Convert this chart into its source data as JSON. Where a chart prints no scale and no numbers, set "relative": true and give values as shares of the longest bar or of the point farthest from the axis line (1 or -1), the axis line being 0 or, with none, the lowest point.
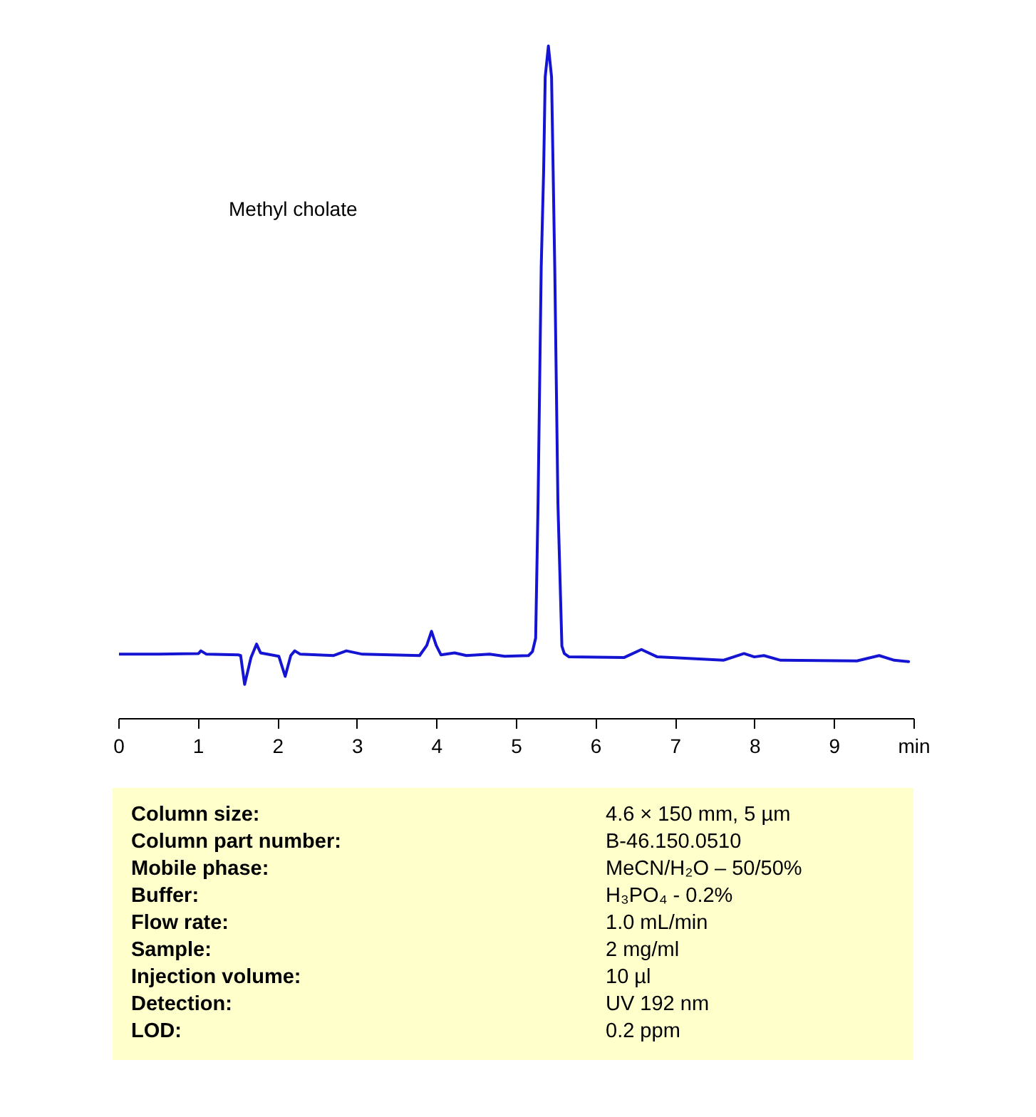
{
  "chart_data": {
    "type": "line",
    "title": "Methyl cholate",
    "relative": true,
    "x": [
      0.0,
      0.5,
      1.0,
      1.03,
      1.1,
      1.5,
      1.53,
      1.58,
      1.66,
      1.73,
      1.78,
      2.01,
      2.09,
      2.16,
      2.21,
      2.28,
      2.7,
      2.86,
      3.06,
      3.78,
      3.87,
      3.93,
      3.99,
      4.05,
      4.22,
      4.37,
      4.66,
      4.85,
      5.15,
      5.2,
      5.24,
      5.27,
      5.29,
      5.31,
      5.34,
      5.36,
      5.4,
      5.44,
      5.46,
      5.48,
      5.5,
      5.52,
      5.57,
      5.6,
      5.66,
      6.35,
      6.57,
      6.77,
      7.6,
      7.86,
      7.99,
      8.11,
      8.32,
      9.28,
      9.56,
      9.75,
      9.93
    ],
    "series": [
      {
        "color": "#1414d2",
        "values": [
          0.096,
          0.096,
          0.097,
          0.101,
          0.096,
          0.095,
          0.094,
          0.051,
          0.091,
          0.111,
          0.098,
          0.093,
          0.063,
          0.094,
          0.101,
          0.096,
          0.094,
          0.101,
          0.096,
          0.094,
          0.109,
          0.13,
          0.109,
          0.095,
          0.098,
          0.094,
          0.096,
          0.093,
          0.094,
          0.1,
          0.12,
          0.32,
          0.496,
          0.672,
          0.813,
          0.954,
          1.0,
          0.954,
          0.813,
          0.672,
          0.496,
          0.32,
          0.108,
          0.097,
          0.092,
          0.091,
          0.103,
          0.092,
          0.087,
          0.097,
          0.092,
          0.094,
          0.087,
          0.086,
          0.094,
          0.087,
          0.085
        ]
      }
    ],
    "xlim": [
      0,
      10
    ],
    "xticks": [
      0,
      1,
      2,
      3,
      4,
      5,
      6,
      7,
      8,
      9,
      {
        "value": 10,
        "label": "min"
      }
    ],
    "line_style": "solid",
    "annotations": [
      "Column size: 4.6 × 150 mm, 5 µm",
      "Column part number: B-46.150.0510",
      "Mobile phase: MeCN/H₂O – 50/50%",
      "Buffer: H₃PO₄ - 0.2%",
      "Flow rate: 1.0 mL/min",
      "Sample: 2 mg/ml",
      "Injection volume: 10 µl",
      "Detection: UV 192 nm",
      "LOD: 0.2 ppm"
    ]
  }
}
